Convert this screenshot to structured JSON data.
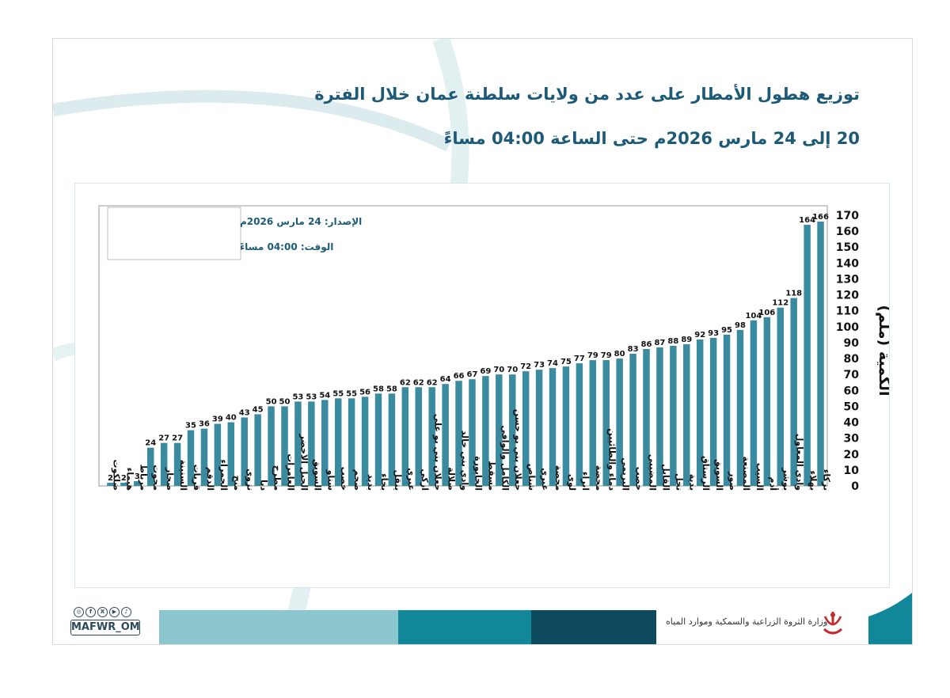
{
  "header": {
    "title_line1": "توزيع هطول الأمطار على عدد من ولايات سلطنة عمان خلال الفترة",
    "title_line2": "20 إلى 24 مارس  2026م حتى الساعة 04:00 مساءً"
  },
  "info_box": {
    "issue": "الإصدار: 24 مارس 2026م",
    "time": "الوقت: 04:00  مساءً"
  },
  "chart_data": {
    "type": "bar",
    "title": "",
    "xlabel": "",
    "ylabel": "الكمية (ملم)",
    "ylim": [
      0,
      170
    ],
    "yticks": [
      0,
      10,
      20,
      30,
      40,
      50,
      60,
      70,
      80,
      90,
      100,
      110,
      120,
      130,
      140,
      150,
      160,
      170
    ],
    "y_axis_side": "right",
    "grid": false,
    "bar_color": "#3a8aa0",
    "categories": [
      "ضلكوت",
      "هيماء",
      "مرباط",
      "محوت",
      "صحار",
      "السنينة",
      "قريات",
      "الدقم",
      "الحمراء",
      "منح",
      "نزوى",
      "دبا",
      "مطرح",
      "العامرات",
      "الجبل الأخضر",
      "السويق",
      "سناو",
      "خصب",
      "صحم",
      "بدبد",
      "بخاء",
      "ينقل",
      "عبري",
      "ازكي",
      "جعلان بني بو علي",
      "صلالة",
      "وادي بني خالد",
      "الخابورة",
      "مسقط",
      "الكامل والوافي",
      "جعلان بني بو حسن",
      "شناص",
      "عبري",
      "محضة",
      "لوى",
      "ابراء",
      "محضة",
      "دماء والطائيين",
      "البريمي",
      "خصب",
      "المضيبي",
      "القابل",
      "نخل",
      "بدية",
      "الرستاق",
      "السويق",
      "صور",
      "المصنعة",
      "السيب",
      "أدم",
      "بوشر",
      "وادي المعاول",
      "بهلاء",
      "بركاء"
    ],
    "values": [
      2,
      2,
      3,
      24,
      27,
      27,
      35,
      36,
      39,
      40,
      43,
      45,
      50,
      50,
      53,
      53,
      54,
      55,
      55,
      56,
      58,
      58,
      62,
      62,
      62,
      64,
      66,
      67,
      69,
      70,
      70,
      72,
      73,
      74,
      75,
      77,
      79,
      79,
      80,
      83,
      86,
      87,
      88,
      89,
      92,
      93,
      95,
      98,
      104,
      106,
      112,
      118,
      164,
      166
    ]
  },
  "footer": {
    "handle": "MAFWR_OM",
    "social_icons": [
      "instagram-icon",
      "facebook-icon",
      "x-icon",
      "youtube-icon",
      "tiktok-icon"
    ],
    "ministry": "وزارة الثروة الزراعية والسمكية وموارد المياه",
    "band_colors": [
      "#8cc6cf",
      "#12879a",
      "#0d4a5e"
    ]
  }
}
